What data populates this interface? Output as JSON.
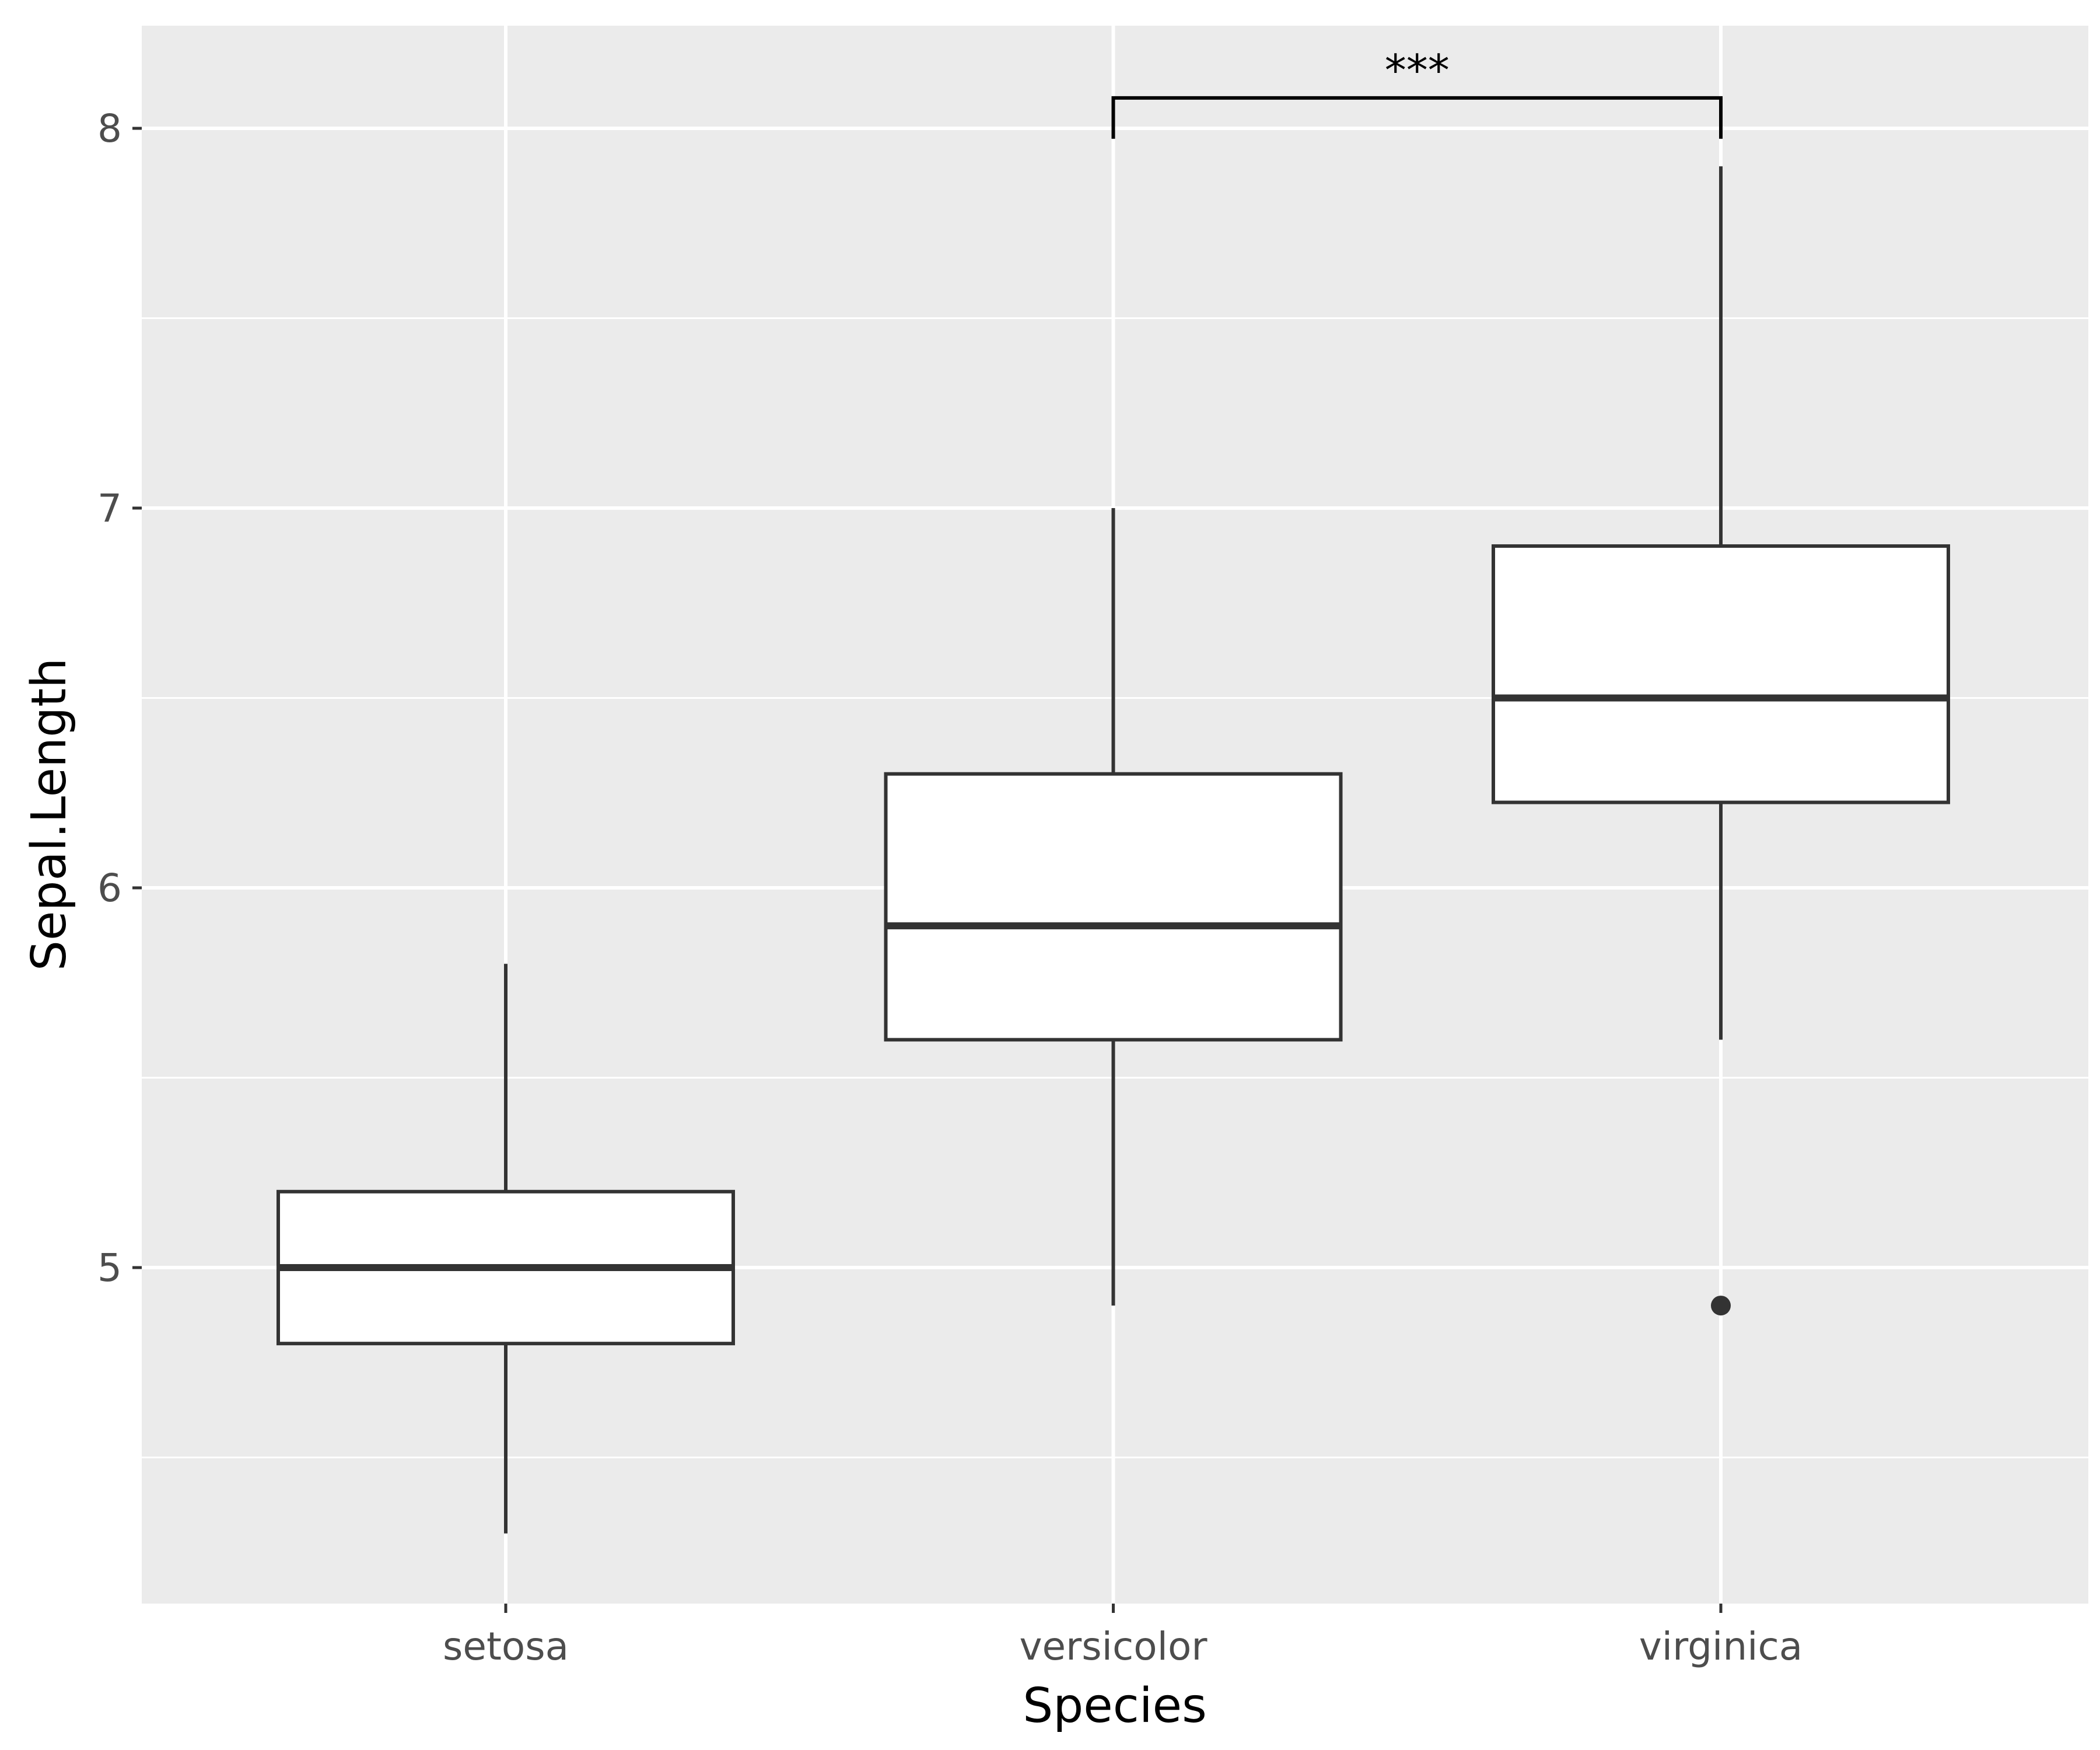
{
  "chart_data": {
    "type": "box",
    "title": "",
    "xlabel": "Species",
    "ylabel": "Sepal.Length",
    "ylim": [
      4.18,
      8.27
    ],
    "yticks": [
      "5",
      "6",
      "7",
      "8"
    ],
    "ytick_values": [
      5,
      6,
      7,
      8
    ],
    "categories": [
      "setosa",
      "versicolor",
      "virginica"
    ],
    "boxes": [
      {
        "category": "setosa",
        "whisker_low": 4.3,
        "q1": 4.8,
        "median": 5.0,
        "q3": 5.2,
        "whisker_high": 5.8,
        "outliers": []
      },
      {
        "category": "versicolor",
        "whisker_low": 4.9,
        "q1": 5.6,
        "median": 5.9,
        "q3": 6.3,
        "whisker_high": 7.0,
        "outliers": []
      },
      {
        "category": "virginica",
        "whisker_low": 5.6,
        "q1": 6.225,
        "median": 6.5,
        "q3": 6.9,
        "whisker_high": 7.9,
        "outliers": [
          4.9
        ]
      }
    ],
    "annotations": [
      {
        "type": "significance-bracket",
        "from": "versicolor",
        "to": "virginica",
        "label": "***",
        "y": 8.08
      }
    ],
    "grid": true,
    "legend": "none",
    "colors": {
      "panel": "#ebebeb",
      "grid": "#ffffff",
      "box_fill": "#ffffff",
      "box_line": "#333333",
      "tick_text": "#4d4d4d",
      "bracket": "#000000"
    }
  }
}
